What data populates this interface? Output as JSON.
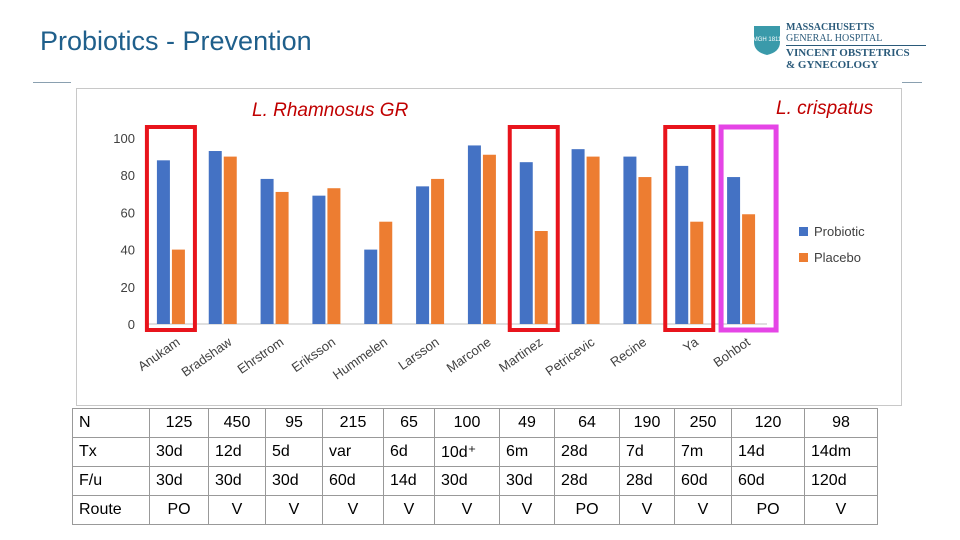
{
  "slide": {
    "title": "Probiotics - Prevention"
  },
  "logo": {
    "line1": "MASSACHUSETTS",
    "line2": "GENERAL HOSPITAL",
    "line3": "VINCENT OBSTETRICS",
    "line4": "& GYNECOLOGY",
    "seal_text": "MGH 1811"
  },
  "annotations": {
    "rhamnosus": "L. Rhamnosus GR",
    "crispatus": "L. crispatus"
  },
  "colors": {
    "probiotic": "#4472c4",
    "placebo": "#ed7d31",
    "red_box": "#e8141c",
    "magenta_box": "#e545e6",
    "title": "#1f5f8b"
  },
  "chart_data": {
    "type": "bar",
    "categories": [
      "Anukam",
      "Bradshaw",
      "Ehrstrom",
      "Eriksson",
      "Hummelen",
      "Larsson",
      "Marcone",
      "Martinez",
      "Petricevic",
      "Recine",
      "Ya",
      "Bohbot"
    ],
    "series": [
      {
        "name": "Probiotic",
        "values": [
          88,
          93,
          78,
          69,
          40,
          74,
          96,
          87,
          94,
          90,
          85,
          79
        ]
      },
      {
        "name": "Placebo",
        "values": [
          40,
          90,
          71,
          73,
          55,
          78,
          91,
          50,
          90,
          79,
          55,
          59
        ]
      }
    ],
    "yticks": [
      0,
      20,
      40,
      60,
      80,
      100
    ],
    "ylim": [
      0,
      100
    ],
    "legend_position": "right",
    "highlighted_red": [
      "Anukam",
      "Martinez",
      "Ya"
    ],
    "highlighted_magenta": [
      "Bohbot"
    ]
  },
  "table": {
    "rows": [
      {
        "label": "N",
        "cells": [
          "125",
          "450",
          "95",
          "215",
          "65",
          "100",
          "49",
          "64",
          "190",
          "250",
          "120",
          "98"
        ]
      },
      {
        "label": "Tx",
        "cells": [
          "30d",
          "12d",
          "5d",
          "var",
          "6d",
          "10d⁺",
          "6m",
          "28d",
          "7d",
          "7m",
          "14d",
          "14dm"
        ]
      },
      {
        "label": "F/u",
        "cells": [
          "30d",
          "30d",
          "30d",
          "60d",
          "14d",
          "30d",
          "30d",
          "28d",
          "28d",
          "60d",
          "60d",
          "120d"
        ]
      },
      {
        "label": "Route",
        "cells": [
          "PO",
          "V",
          "V",
          "V",
          "V",
          "V",
          "V",
          "PO",
          "V",
          "V",
          "PO",
          "V"
        ]
      }
    ]
  }
}
